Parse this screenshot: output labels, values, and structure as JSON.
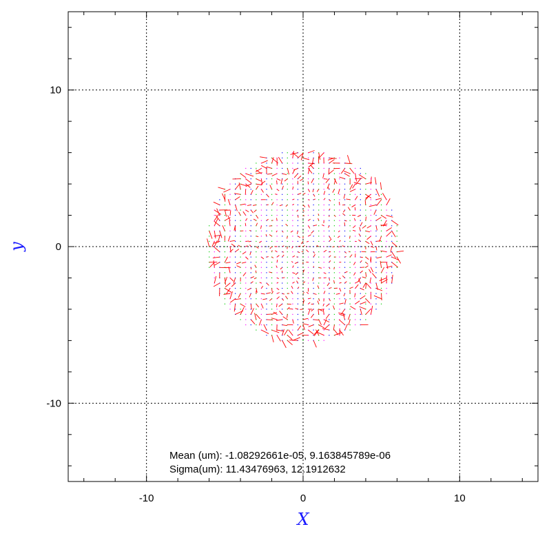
{
  "chart_data": {
    "type": "scatter",
    "xlabel": "X",
    "ylabel": "y",
    "xlim": [
      -15,
      15
    ],
    "ylim": [
      -15,
      15
    ],
    "x_ticks": [
      -10,
      0,
      10
    ],
    "y_ticks": [
      -10,
      0,
      10
    ],
    "x_tick_labels": [
      "-10",
      "0",
      "10"
    ],
    "y_tick_labels": [
      "-10",
      "0",
      "10"
    ],
    "grid": true,
    "series": [
      {
        "style": "grid of dotted points with small vector marks",
        "region": "disk",
        "center": [
          0,
          0
        ],
        "radius": 6.2,
        "grid_spacing": 0.333,
        "point_colors": [
          "#0000ff",
          "#00cc00",
          "#ff00ff"
        ],
        "vector_color": "#ff0000"
      }
    ],
    "annotations": {
      "mean_line": "Mean (um): -1.08292661e-05, 9.163845789e-06",
      "sigma_line": "Sigma(um): 11.43476963, 12.1912632"
    }
  },
  "colors": {
    "axis_title": "#1a1aff",
    "grid": "#000000",
    "frame": "#000000"
  }
}
